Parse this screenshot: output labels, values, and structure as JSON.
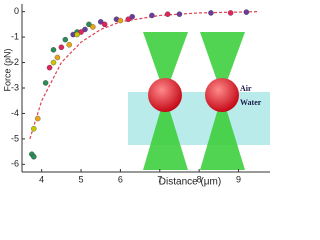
{
  "chart_data": {
    "type": "scatter",
    "x_label": "Distance (μm)",
    "y_label": "Force (pN)",
    "xlim": [
      3.5,
      9.8
    ],
    "ylim": [
      -6.3,
      0.3
    ],
    "xticks": [
      4,
      5,
      6,
      7,
      8,
      9
    ],
    "yticks": [
      0,
      -1,
      -2,
      -3,
      -4,
      -5,
      -6
    ],
    "series": [
      {
        "color": "#2e8b57",
        "x": [
          3.75,
          3.8,
          4.1,
          4.3,
          4.6,
          4.9,
          5.2
        ],
        "values": [
          -5.6,
          -5.7,
          -2.8,
          -1.5,
          -1.1,
          -0.8,
          -0.5
        ]
      },
      {
        "color": "#6a3d9a",
        "x": [
          4.8,
          5.1,
          5.5,
          5.9,
          6.3,
          6.8,
          7.5,
          8.3,
          9.2
        ],
        "values": [
          -0.9,
          -0.7,
          -0.4,
          -0.3,
          -0.2,
          -0.15,
          -0.1,
          -0.05,
          -0.02
        ]
      },
      {
        "color": "#e0245e",
        "x": [
          4.2,
          4.5,
          5.0,
          5.6,
          6.2,
          7.2,
          8.8
        ],
        "values": [
          -2.2,
          -1.4,
          -0.8,
          -0.5,
          -0.3,
          -0.1,
          -0.05
        ]
      },
      {
        "color": "#e8a317",
        "x": [
          3.9,
          4.4,
          4.7,
          5.3,
          6.0
        ],
        "values": [
          -4.2,
          -1.8,
          -1.3,
          -0.6,
          -0.35
        ]
      },
      {
        "color": "#c8c800",
        "x": [
          3.8,
          4.3,
          4.9
        ],
        "values": [
          -4.6,
          -2.0,
          -0.9
        ]
      }
    ],
    "fit": {
      "color": "#e04050",
      "dashed": true,
      "x": [
        3.7,
        4.0,
        4.5,
        5.0,
        5.5,
        6.0,
        7.0,
        8.0,
        9.5
      ],
      "values": [
        -5.0,
        -3.5,
        -2.0,
        -1.2,
        -0.7,
        -0.4,
        -0.15,
        -0.05,
        0
      ]
    },
    "annotations": [
      "Air",
      "Water"
    ]
  }
}
